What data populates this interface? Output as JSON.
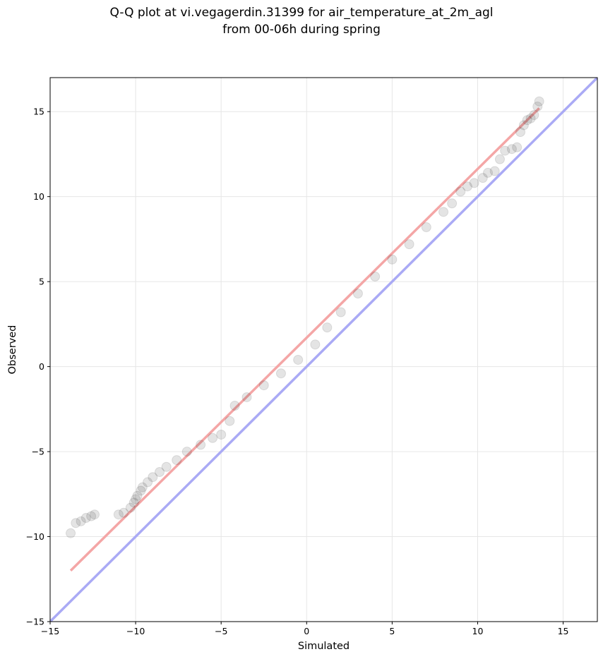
{
  "chart_data": {
    "type": "scatter",
    "title_line1": "Q-Q plot at vi.vegagerdin.31399 for air_temperature_at_2m_agl",
    "title_line2": "from 00-06h during spring",
    "xlabel": "Simulated",
    "ylabel": "Observed",
    "xlim": [
      -15,
      17
    ],
    "ylim": [
      -15,
      17
    ],
    "xticks": [
      -15,
      -10,
      -5,
      0,
      5,
      10,
      15
    ],
    "yticks": [
      -15,
      -10,
      -5,
      0,
      5,
      10,
      15
    ],
    "tick_labels": [
      "−15",
      "−10",
      "−5",
      "0",
      "5",
      "10",
      "15"
    ],
    "grid": true,
    "identity_line": {
      "x": [
        -15,
        17
      ],
      "y": [
        -15,
        17
      ],
      "color": "#aaaaf5"
    },
    "fit_line": {
      "x": [
        -13.8,
        13.6
      ],
      "y": [
        -12.0,
        15.2
      ],
      "color": "#f4a6a6"
    },
    "point_color": "#222222",
    "quantiles": {
      "x": [
        -13.8,
        -13.5,
        -13.2,
        -12.9,
        -12.6,
        -12.4,
        -11.0,
        -10.7,
        -10.3,
        -10.1,
        -10.0,
        -9.9,
        -9.7,
        -9.6,
        -9.3,
        -9.0,
        -8.6,
        -8.2,
        -7.6,
        -7.0,
        -6.2,
        -5.5,
        -5.0,
        -4.5,
        -4.2,
        -3.5,
        -2.5,
        -1.5,
        -0.5,
        0.5,
        1.2,
        2.0,
        3.0,
        4.0,
        5.0,
        6.0,
        7.0,
        8.0,
        8.5,
        9.0,
        9.4,
        9.8,
        10.3,
        10.6,
        11.0,
        11.3,
        11.6,
        12.0,
        12.3,
        12.5,
        12.7,
        12.9,
        13.1,
        13.3,
        13.5,
        13.6
      ],
      "y": [
        -9.8,
        -9.2,
        -9.1,
        -8.9,
        -8.8,
        -8.7,
        -8.7,
        -8.6,
        -8.3,
        -8.0,
        -7.8,
        -7.6,
        -7.3,
        -7.1,
        -6.8,
        -6.5,
        -6.2,
        -5.9,
        -5.5,
        -5.0,
        -4.6,
        -4.2,
        -4.0,
        -3.2,
        -2.3,
        -1.8,
        -1.1,
        -0.4,
        0.4,
        1.3,
        2.3,
        3.2,
        4.3,
        5.3,
        6.3,
        7.2,
        8.2,
        9.1,
        9.6,
        10.3,
        10.6,
        10.8,
        11.1,
        11.4,
        11.5,
        12.2,
        12.7,
        12.8,
        12.9,
        13.8,
        14.2,
        14.5,
        14.6,
        14.8,
        15.3,
        15.6
      ]
    }
  }
}
